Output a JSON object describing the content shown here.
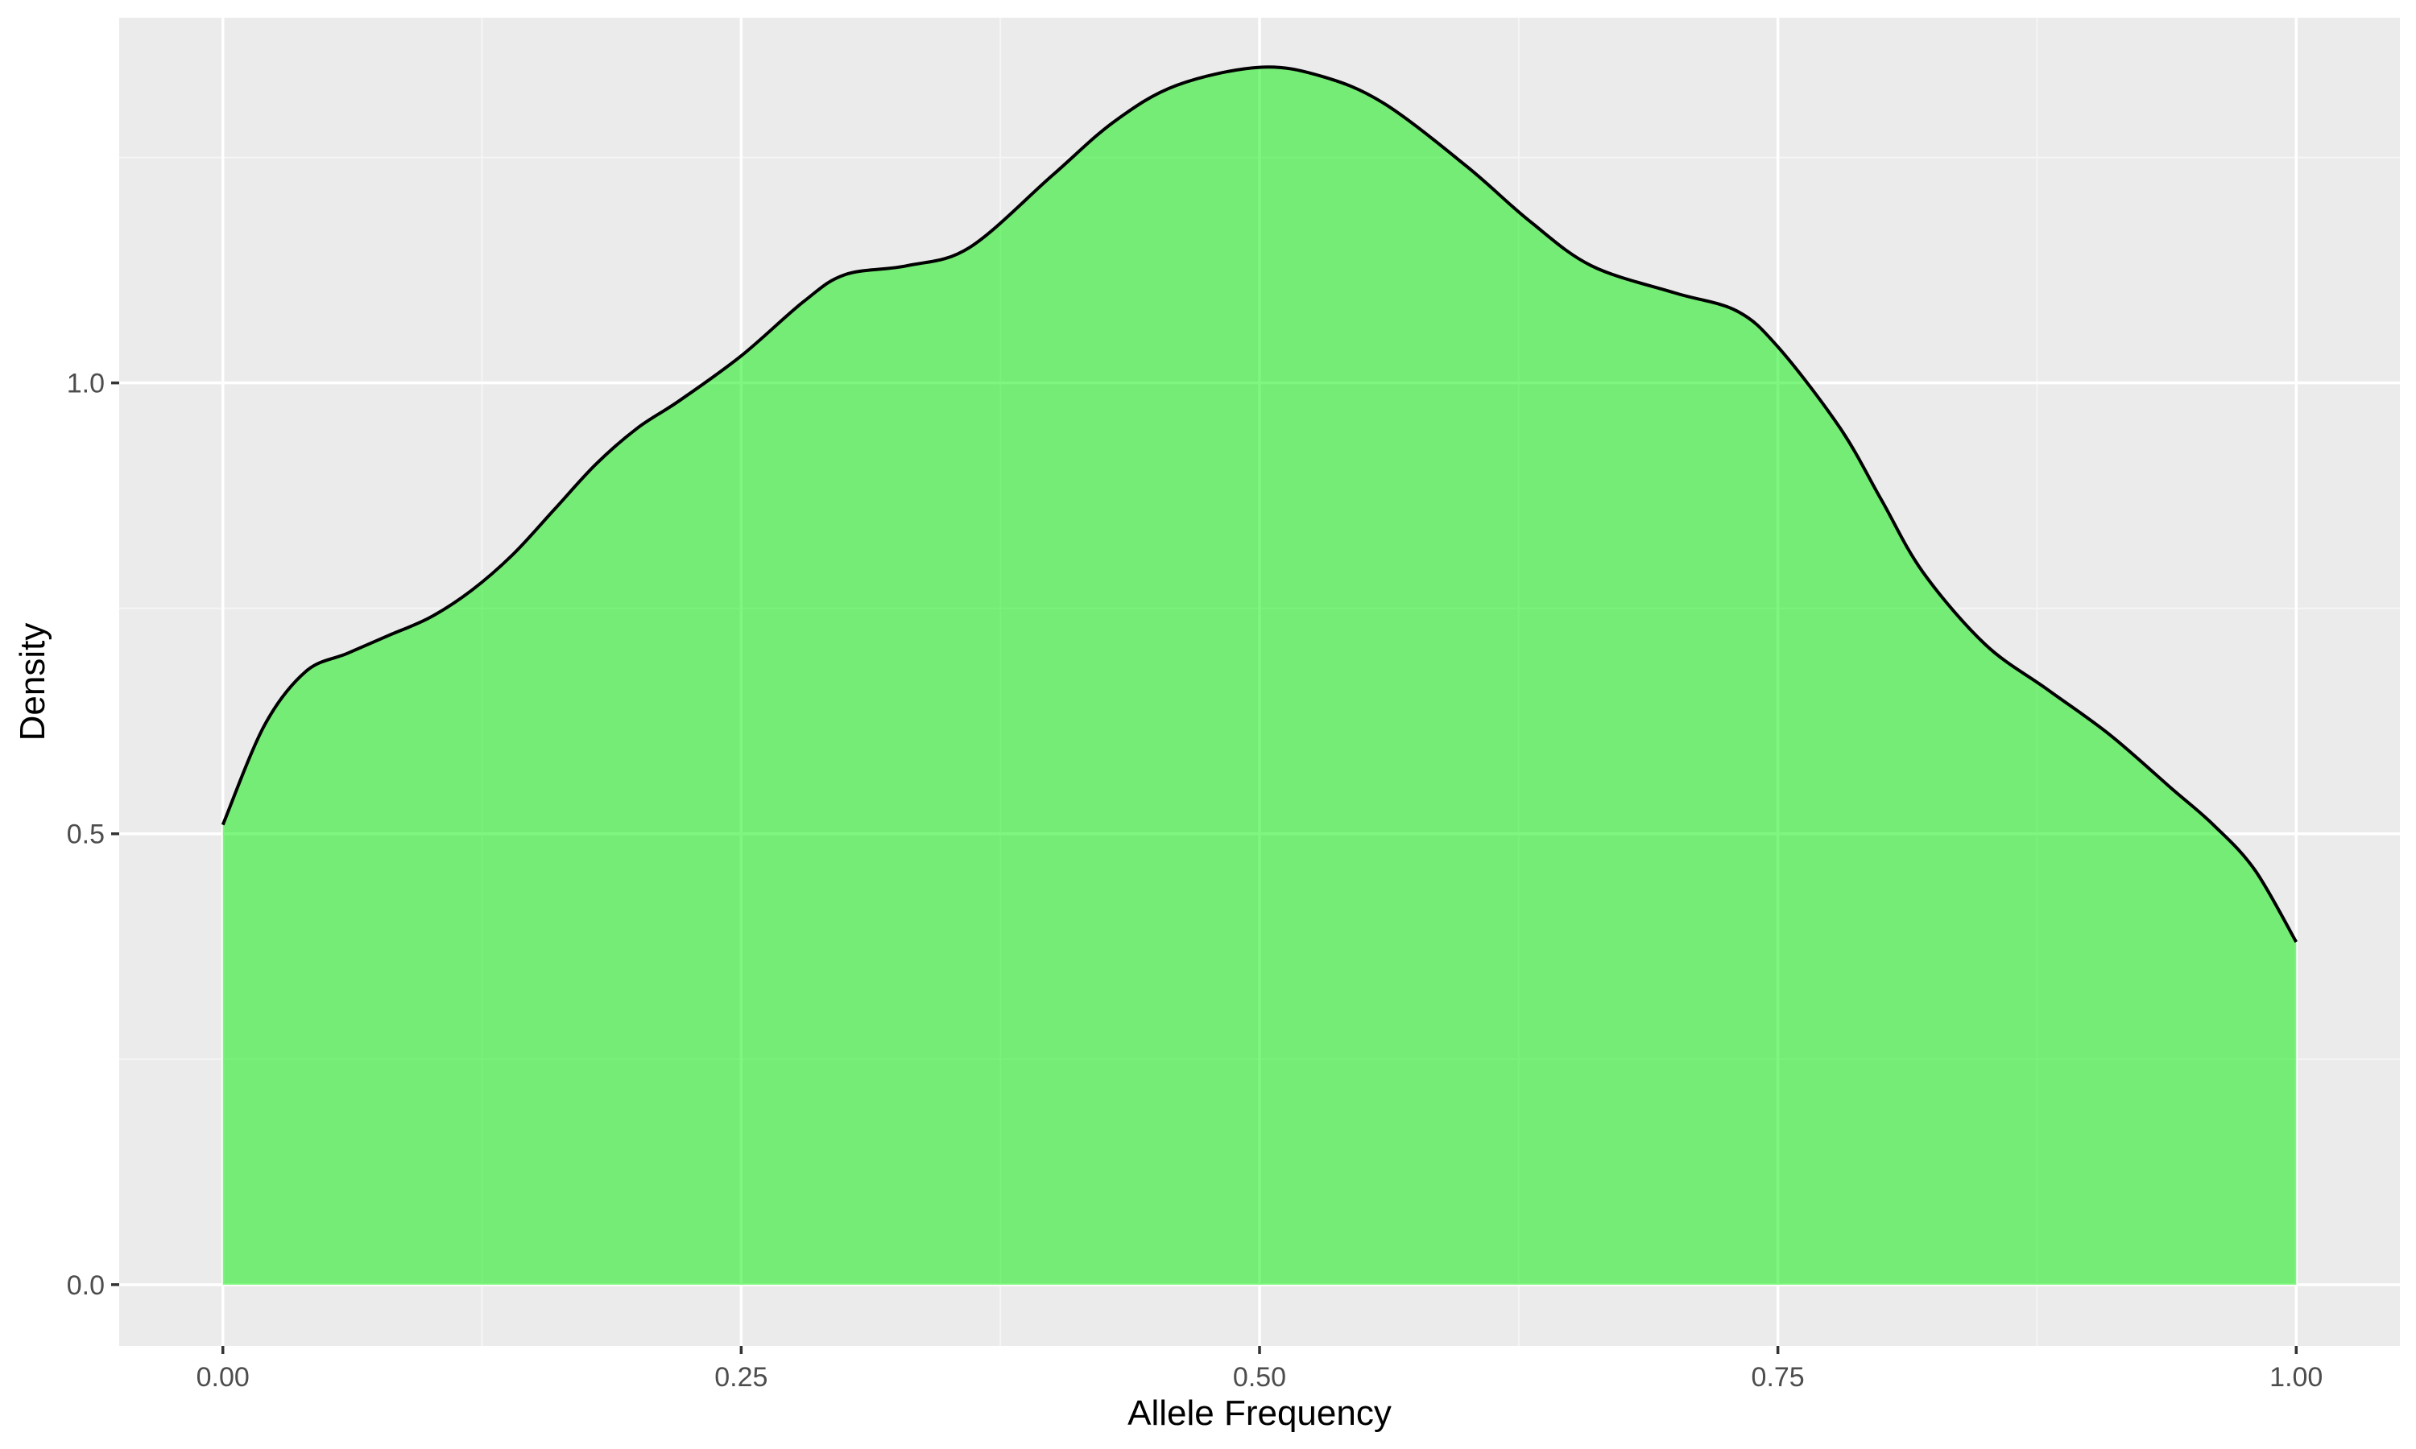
{
  "colors": {
    "panel_background": "#EBEBEB",
    "grid_major": "#FFFFFF",
    "grid_minor": "#F5F5F5",
    "fill": "#00EE00",
    "fill_opacity": 0.5,
    "line": "#000000",
    "tick_text": "#4D4D4D"
  },
  "chart_data": {
    "type": "area",
    "title": "",
    "xlabel": "Allele Frequency",
    "ylabel": "Density",
    "xlim": [
      -0.05,
      1.05
    ],
    "ylim": [
      -0.068,
      1.405
    ],
    "x_ticks": [
      0.0,
      0.25,
      0.5,
      0.75,
      1.0
    ],
    "x_tick_labels": [
      "0.00",
      "0.25",
      "0.50",
      "0.75",
      "1.00"
    ],
    "y_ticks": [
      0.0,
      0.5,
      1.0
    ],
    "y_tick_labels": [
      "0.0",
      "0.5",
      "1.0"
    ],
    "grid": true,
    "legend": "none",
    "series": [
      {
        "x": [
          0.0,
          0.02,
          0.04,
          0.06,
          0.08,
          0.1,
          0.12,
          0.14,
          0.16,
          0.18,
          0.2,
          0.22,
          0.25,
          0.28,
          0.3,
          0.33,
          0.36,
          0.4,
          0.43,
          0.46,
          0.5,
          0.53,
          0.56,
          0.6,
          0.63,
          0.66,
          0.7,
          0.73,
          0.75,
          0.78,
          0.8,
          0.82,
          0.85,
          0.88,
          0.91,
          0.94,
          0.96,
          0.98,
          1.0
        ],
        "y": [
          0.51,
          0.62,
          0.68,
          0.7,
          0.72,
          0.74,
          0.77,
          0.81,
          0.86,
          0.91,
          0.95,
          0.98,
          1.03,
          1.09,
          1.12,
          1.13,
          1.15,
          1.23,
          1.29,
          1.33,
          1.35,
          1.34,
          1.31,
          1.24,
          1.18,
          1.13,
          1.1,
          1.08,
          1.04,
          0.95,
          0.87,
          0.79,
          0.71,
          0.66,
          0.61,
          0.55,
          0.51,
          0.46,
          0.38
        ]
      }
    ]
  }
}
